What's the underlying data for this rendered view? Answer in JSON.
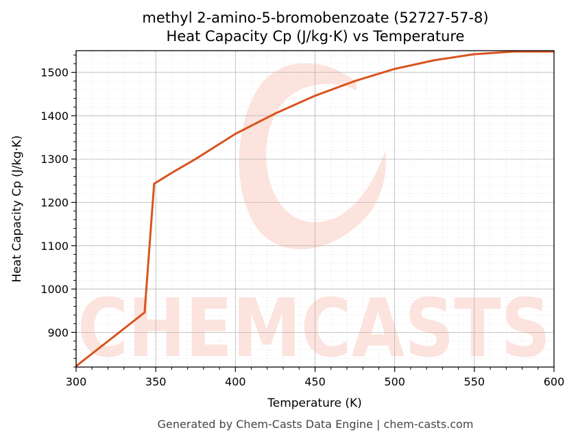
{
  "chart_data": {
    "type": "line",
    "title": "methyl 2-amino-5-bromobenzoate (52727-57-8)",
    "subtitle": "Heat Capacity Cp (J/kg·K) vs Temperature",
    "xlabel": "Temperature (K)",
    "ylabel": "Heat Capacity Cp (J/kg·K)",
    "xlim": [
      300,
      600
    ],
    "ylim": [
      820,
      1550
    ],
    "xticks": [
      300,
      350,
      400,
      450,
      500,
      550,
      600
    ],
    "yticks": [
      900,
      1000,
      1100,
      1200,
      1300,
      1400,
      1500
    ],
    "grid": true,
    "line_color": "#d9531e",
    "series": [
      {
        "x": [
          300,
          343,
          349,
          360,
          375,
          400,
          425,
          450,
          475,
          500,
          525,
          550,
          575,
          600
        ],
        "y": [
          822,
          946,
          1243,
          1268,
          1300,
          1358,
          1405,
          1446,
          1480,
          1508,
          1528,
          1542,
          1548,
          1548
        ]
      }
    ]
  },
  "watermark": {
    "text": "CHEMCASTS",
    "color": "#fde3dd"
  },
  "footer": "Generated by Chem-Casts Data Engine | chem-casts.com"
}
